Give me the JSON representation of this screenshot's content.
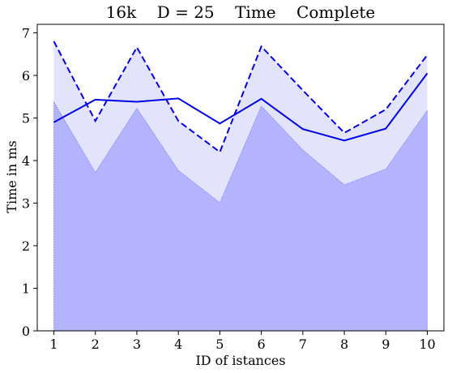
{
  "chart_data": {
    "type": "area",
    "title": "16k    D = 25    Time    Complete",
    "xlabel": "ID of istances",
    "ylabel": "Time in ms",
    "x": [
      1,
      2,
      3,
      4,
      5,
      6,
      7,
      8,
      9,
      10
    ],
    "xlim": [
      0.6,
      10.4
    ],
    "ylim": [
      0,
      7.2
    ],
    "xticks": [
      1,
      2,
      3,
      4,
      5,
      6,
      7,
      8,
      9,
      10
    ],
    "yticks": [
      0,
      1,
      2,
      3,
      4,
      5,
      6,
      7
    ],
    "grid": false,
    "series": [
      {
        "role": "mean",
        "style": "solid-line",
        "values": [
          4.9,
          5.43,
          5.38,
          5.46,
          4.87,
          5.45,
          4.74,
          4.47,
          4.75,
          6.05
        ]
      },
      {
        "role": "upper",
        "style": "dashed-line",
        "values": [
          6.8,
          4.93,
          6.66,
          4.93,
          4.2,
          6.68,
          5.65,
          4.65,
          5.2,
          6.48
        ]
      },
      {
        "role": "lower",
        "style": "filled-area",
        "values": [
          5.38,
          3.72,
          5.23,
          3.77,
          3.01,
          5.28,
          4.25,
          3.43,
          3.8,
          5.18
        ]
      }
    ],
    "colors": {
      "line": "#0000ee",
      "band_fill": "#e3e3fc",
      "lower_fill": "#b4b4fd"
    }
  }
}
